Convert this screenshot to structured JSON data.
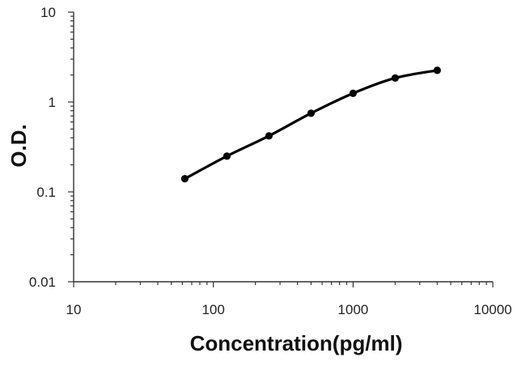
{
  "chart_data": {
    "type": "line",
    "xlabel": "Concentration(pg/ml)",
    "ylabel": "O.D.",
    "x_scale": "log",
    "y_scale": "log",
    "xlim": [
      10,
      10000
    ],
    "ylim": [
      0.01,
      10
    ],
    "x_ticks": [
      10,
      100,
      1000,
      10000
    ],
    "y_ticks": [
      0.01,
      0.1,
      1,
      10
    ],
    "x_tick_labels": [
      "10",
      "100",
      "1000",
      "10000"
    ],
    "y_tick_labels": [
      "0.01",
      "0.1",
      "1",
      "10"
    ],
    "grid": false,
    "legend": "none",
    "series": [
      {
        "x": [
          62.5,
          125,
          250,
          500,
          1000,
          2000,
          4000
        ],
        "y": [
          0.14,
          0.25,
          0.42,
          0.75,
          1.25,
          1.85,
          2.25
        ],
        "color": "#000000",
        "marker": "circle"
      }
    ]
  }
}
